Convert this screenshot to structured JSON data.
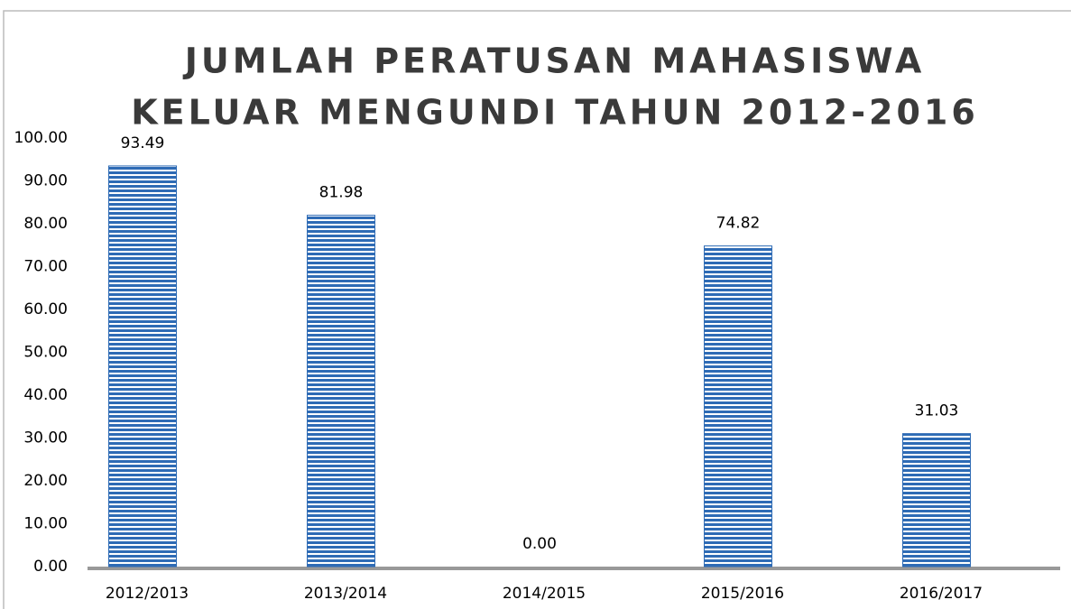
{
  "chart_data": {
    "type": "bar",
    "title": [
      "JUMLAH PERATUSAN MAHASISWA",
      "KELUAR MENGUNDI TAHUN 2012-2016"
    ],
    "categories": [
      "2012/2013",
      "2013/2014",
      "2014/2015",
      "2015/2016",
      "2016/2017"
    ],
    "values": [
      93.49,
      81.98,
      0,
      74.82,
      31.03
    ],
    "value_labels": [
      "93.49",
      "81.98",
      "0.00",
      "74.82",
      "31.03"
    ],
    "color": "#2e6bb5",
    "ylim": [
      0,
      100
    ],
    "yticks": [
      {
        "value": 0,
        "label": "0.00"
      },
      {
        "value": 10,
        "label": "10.00"
      },
      {
        "value": 20,
        "label": "20.00"
      },
      {
        "value": 30,
        "label": "30.00"
      },
      {
        "value": 40,
        "label": "40.00"
      },
      {
        "value": 50,
        "label": "50.00"
      },
      {
        "value": 60,
        "label": "60.00"
      },
      {
        "value": 70,
        "label": "70.00"
      },
      {
        "value": 80,
        "label": "80.00"
      },
      {
        "value": 90,
        "label": "90.00"
      },
      {
        "value": 100,
        "label": "100.00"
      }
    ],
    "grid": false
  }
}
